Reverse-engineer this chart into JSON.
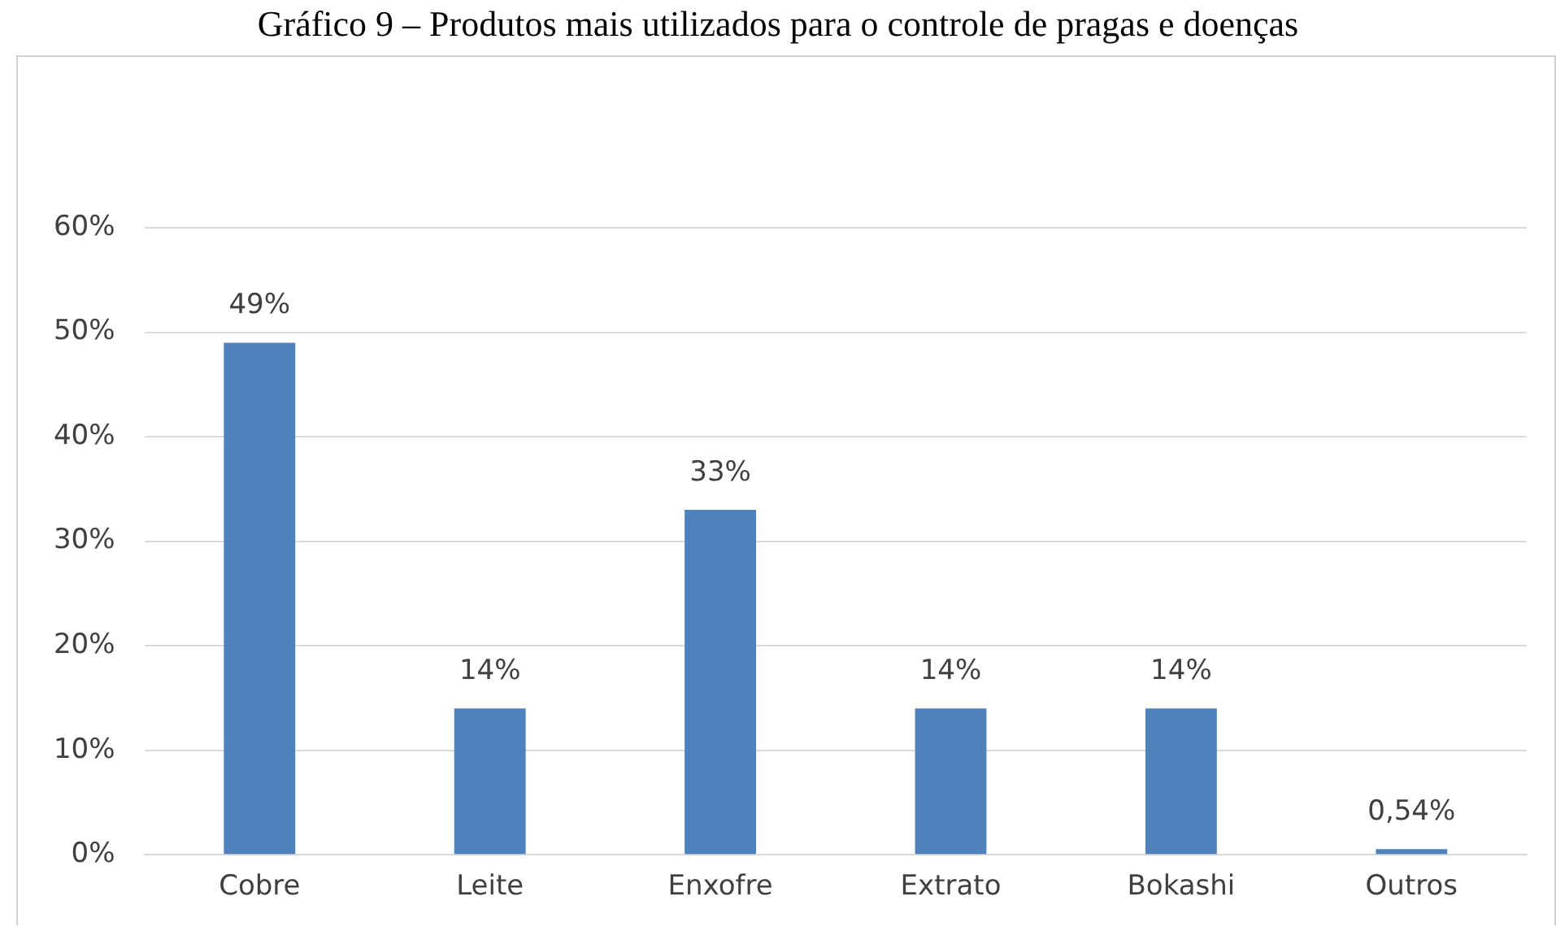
{
  "chart_data": {
    "type": "bar",
    "title": "Gráfico 9 – Produtos mais utilizados para o controle de pragas e doenças",
    "categories": [
      "Cobre",
      "Leite",
      "Enxofre",
      "Extrato",
      "Bokashi",
      "Outros"
    ],
    "values": [
      49,
      14,
      33,
      14,
      14,
      0.54
    ],
    "value_labels": [
      "49%",
      "14%",
      "33%",
      "14%",
      "14%",
      "0,54%"
    ],
    "color": "#4f81bd",
    "ylim": [
      0,
      60
    ],
    "yticks": [
      {
        "value": 0,
        "label": "0%"
      },
      {
        "value": 10,
        "label": "10%"
      },
      {
        "value": 20,
        "label": "20%"
      },
      {
        "value": 30,
        "label": "30%"
      },
      {
        "value": 40,
        "label": "40%"
      },
      {
        "value": 50,
        "label": "50%"
      },
      {
        "value": 60,
        "label": "60%"
      }
    ],
    "grid": "y",
    "legend": false
  }
}
